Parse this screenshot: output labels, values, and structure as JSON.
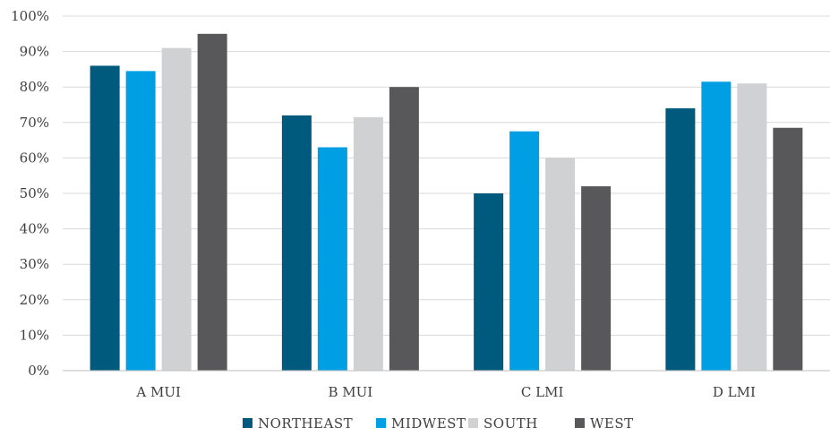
{
  "chart_data": {
    "type": "bar",
    "title": "",
    "xlabel": "",
    "ylabel": "",
    "categories": [
      "A MUI",
      "B MUI",
      "C LMI",
      "D LMI"
    ],
    "series": [
      {
        "name": "NORTHEAST",
        "color": "#005A7D",
        "values": [
          86,
          72,
          50,
          74
        ]
      },
      {
        "name": "MIDWEST",
        "color": "#009FE3",
        "values": [
          84.5,
          63,
          67.5,
          81.5
        ]
      },
      {
        "name": "SOUTH",
        "color": "#D0D1D3",
        "values": [
          91,
          71.5,
          60,
          81
        ]
      },
      {
        "name": "WEST",
        "color": "#58585A",
        "values": [
          95,
          80,
          52,
          68.5
        ]
      }
    ],
    "ylim": [
      0,
      100
    ],
    "yticks": [
      0,
      10,
      20,
      30,
      40,
      50,
      60,
      70,
      80,
      90,
      100
    ],
    "ytick_suffix": "%",
    "grid": true,
    "legend_position": "bottom"
  }
}
